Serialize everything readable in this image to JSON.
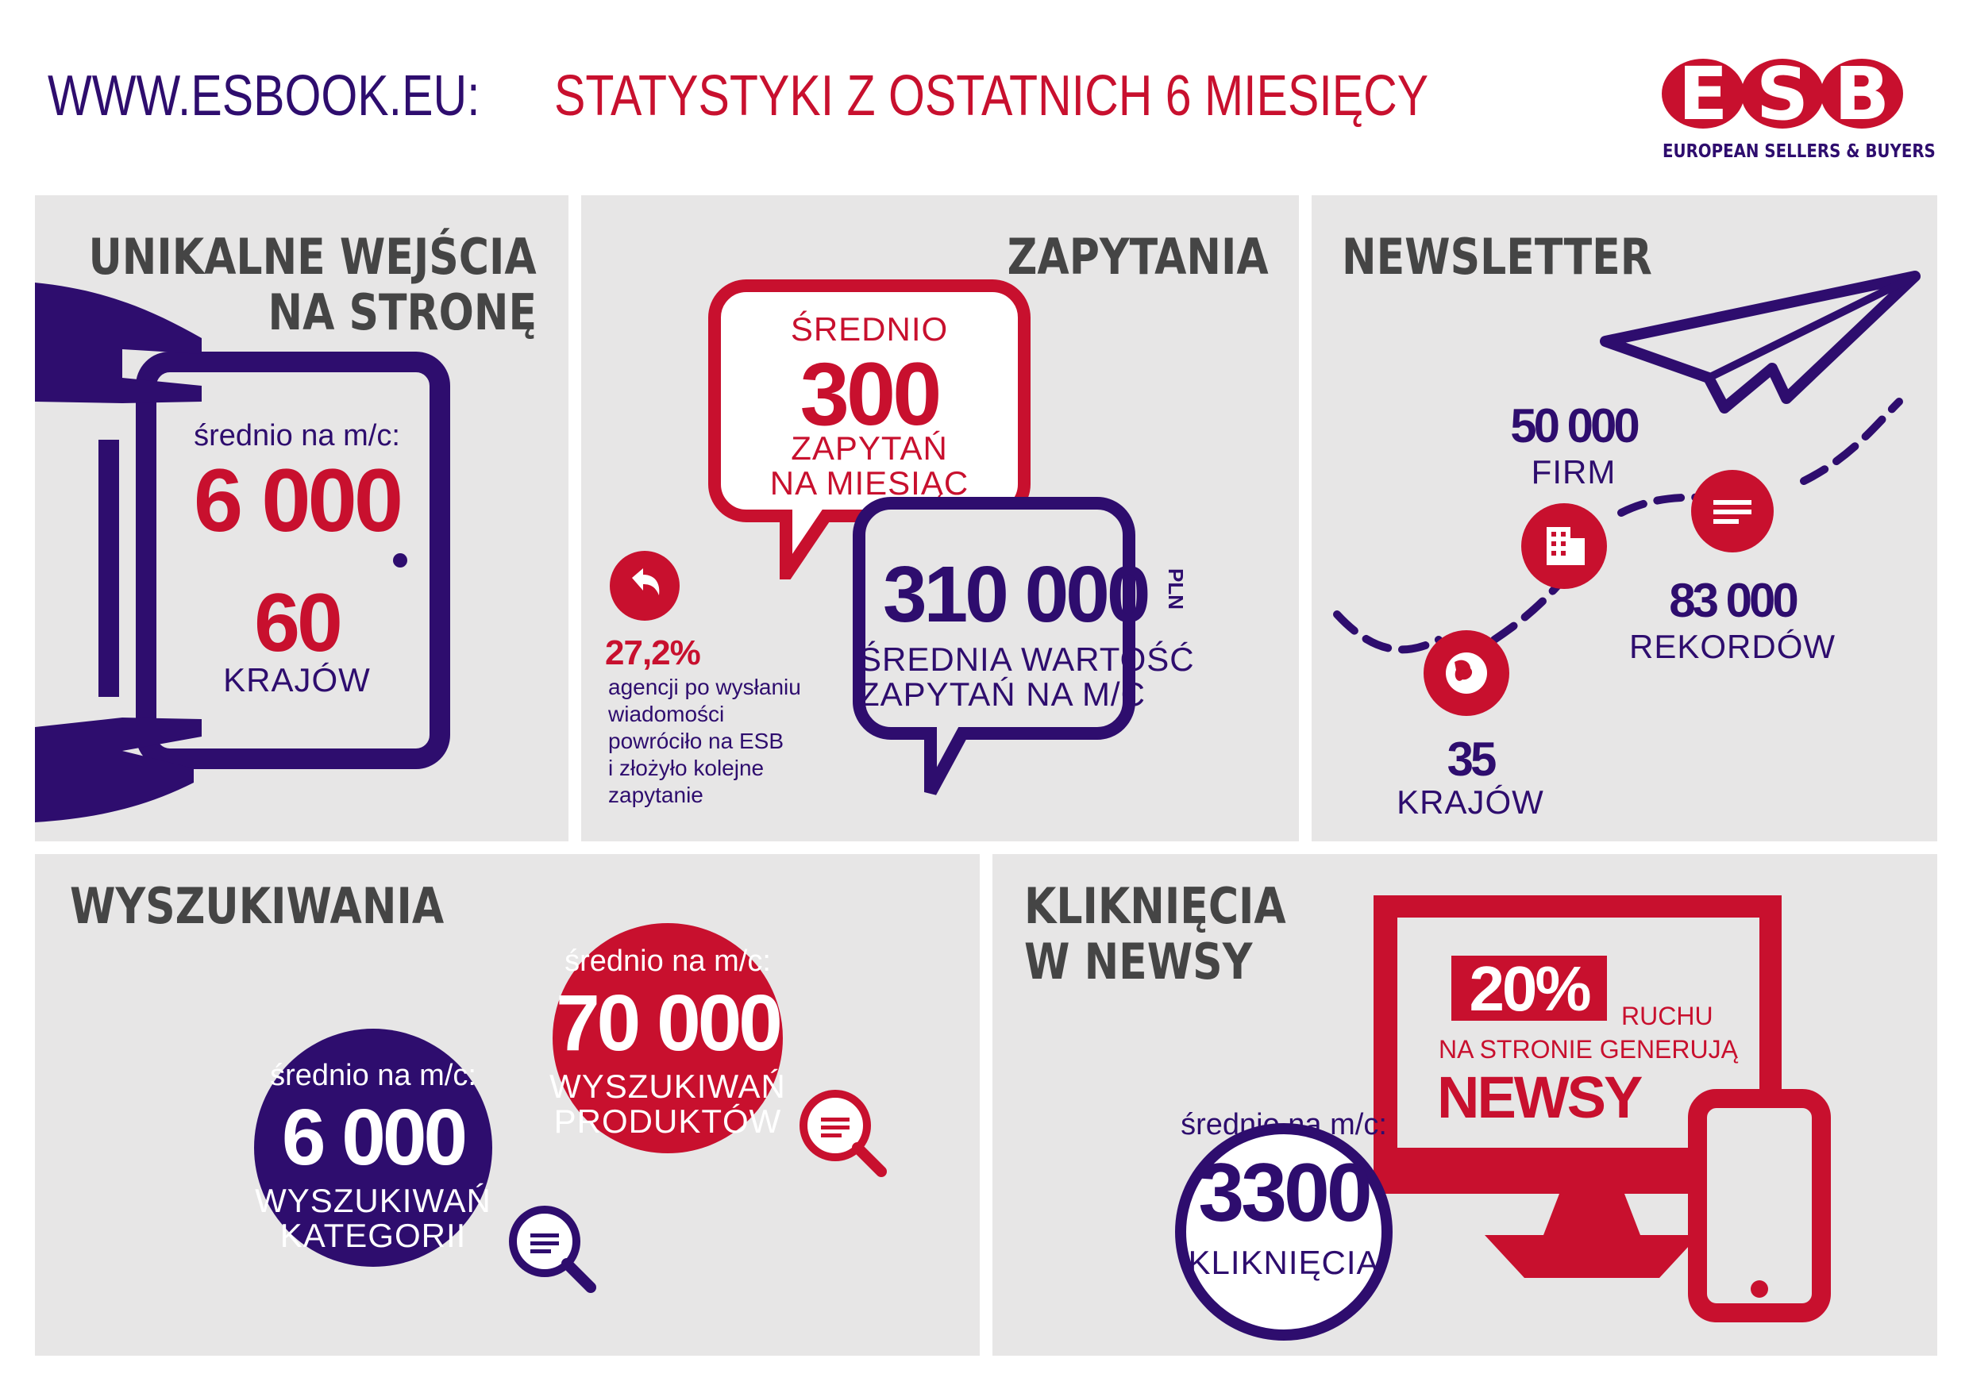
{
  "header": {
    "site": "WWW.ESBOOK.EU:",
    "title": "STATYSTYKI Z OSTATNICH 6 MIESIĘCY"
  },
  "logo": {
    "letters": "ESB",
    "tagline": "EUROPEAN SELLERS & BUYERS"
  },
  "colors": {
    "red": "#c8102e",
    "purple": "#2e0d6e",
    "panel": "#e7e6e6",
    "title": "#454545"
  },
  "unique": {
    "title1": "UNIKALNE WEJŚCIA",
    "title2": "NA STRONĘ",
    "avg": "średnio na m/c:",
    "value": "6 000",
    "countries_value": "60",
    "countries_label": "KRAJÓW"
  },
  "inquiries": {
    "title": "ZAPYTANIA",
    "bubble1_top": "ŚREDNIO",
    "bubble1_value": "300",
    "bubble1_l1": "ZAPYTAŃ",
    "bubble1_l2": "NA MIESIĄC",
    "bubble2_value": "310 000",
    "bubble2_unit": "PLN",
    "bubble2_l1": "ŚREDNIA WARTOŚĆ",
    "bubble2_l2": "ZAPYTAŃ NA M/C",
    "return_pct": "27,2%",
    "return_l1": "agencji po wysłaniu",
    "return_l2": "wiadomości",
    "return_l3": "powróciło na ESB",
    "return_l4": "i złożyło kolejne",
    "return_l5": "zapytanie"
  },
  "newsletter": {
    "title": "NEWSLETTER",
    "firms_value": "50 000",
    "firms_label": "FIRM",
    "records_value": "83 000",
    "records_label": "REKORDÓW",
    "countries_value": "35",
    "countries_label": "KRAJÓW"
  },
  "searches": {
    "title": "WYSZUKIWANIA",
    "red_avg": "średnio na m/c:",
    "red_value": "70 000",
    "red_l1": "WYSZUKIWAŃ",
    "red_l2": "PRODUKTÓW",
    "purple_avg": "średnio na m/c:",
    "purple_value": "6 000",
    "purple_l1": "WYSZUKIWAŃ",
    "purple_l2": "KATEGORII"
  },
  "clicks": {
    "title1": "KLIKNIĘCIA",
    "title2": "W NEWSY",
    "pct": "20%",
    "traffic": "RUCHU",
    "generate": "NA STRONIE GENERUJĄ",
    "news": "NEWSY",
    "avg": "średnio na m/c:",
    "value": "3300",
    "label": "KLIKNIĘCIA"
  },
  "icons": [
    "return-arrow-icon",
    "building-icon",
    "document-icon",
    "globe-icon",
    "paper-plane-icon",
    "magnifier-icon",
    "tablet-icon",
    "monitor-icon",
    "phone-icon"
  ]
}
